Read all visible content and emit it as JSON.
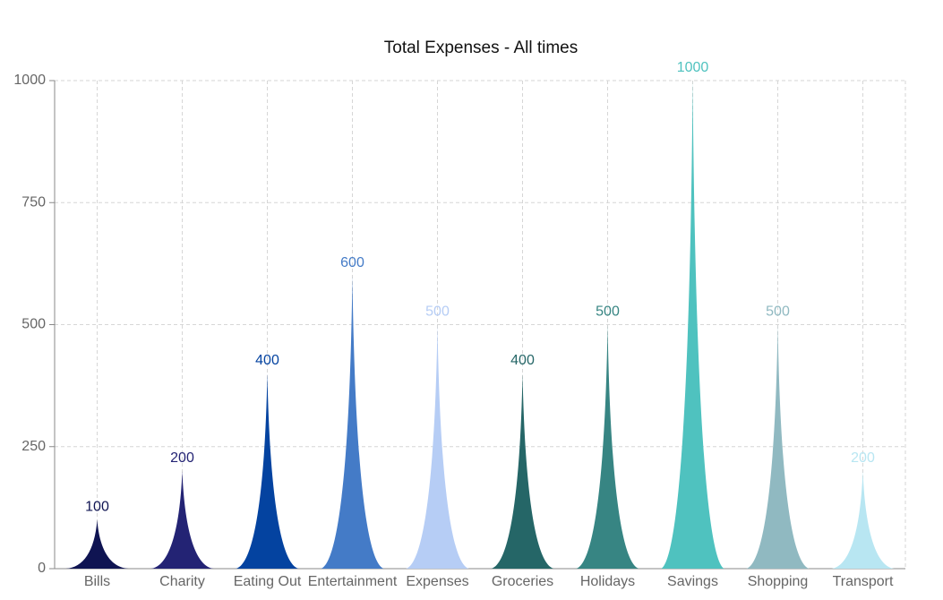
{
  "chart_data": {
    "type": "bar",
    "title": "Total Expenses - All times",
    "xlabel": "",
    "ylabel": "",
    "ylim": [
      0,
      1000
    ],
    "yticks": [
      0,
      250,
      500,
      750,
      1000
    ],
    "grid": true,
    "legend": "none",
    "bar_shape": "spike",
    "categories": [
      "Bills",
      "Charity",
      "Eating Out",
      "Entertainment",
      "Expenses",
      "Groceries",
      "Holidays",
      "Savings",
      "Shopping",
      "Transport"
    ],
    "values": [
      100,
      200,
      400,
      600,
      500,
      400,
      500,
      1000,
      500,
      200
    ],
    "colors": [
      "#0f1452",
      "#232374",
      "#0443a0",
      "#447bc7",
      "#b6cdf5",
      "#256667",
      "#378583",
      "#4fc2bf",
      "#90b9c1",
      "#b8e6f2"
    ]
  }
}
